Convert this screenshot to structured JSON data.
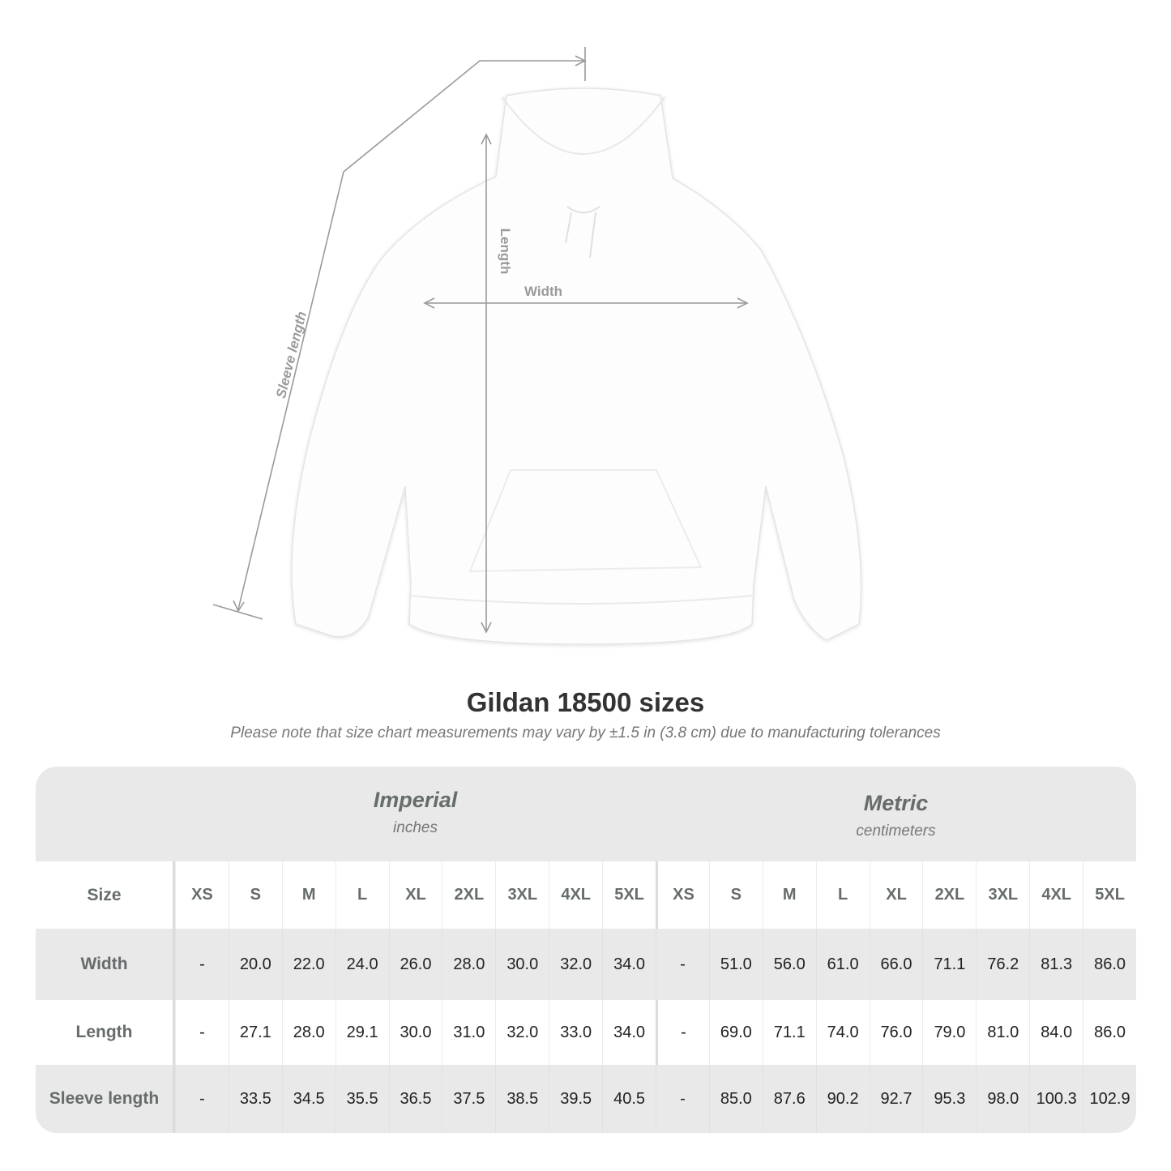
{
  "diagram": {
    "labels": {
      "length": "Length",
      "width": "Width",
      "sleeve_length": "Sleeve length"
    },
    "colors": {
      "measure_line": "#9a9a9a",
      "garment": "#ffffff"
    }
  },
  "title": "Gildan 18500 sizes",
  "subtitle": "Please note that size chart measurements may vary by ±1.5 in (3.8 cm) due to manufacturing tolerances",
  "table": {
    "imperial": {
      "name": "Imperial",
      "unit": "inches"
    },
    "metric": {
      "name": "Metric",
      "unit": "centimeters"
    },
    "size_label": "Size",
    "sizes": [
      "XS",
      "S",
      "M",
      "L",
      "XL",
      "2XL",
      "3XL",
      "4XL",
      "5XL"
    ],
    "rows": [
      {
        "label": "Width",
        "imperial": [
          "-",
          "20.0",
          "22.0",
          "24.0",
          "26.0",
          "28.0",
          "30.0",
          "32.0",
          "34.0"
        ],
        "metric": [
          "-",
          "51.0",
          "56.0",
          "61.0",
          "66.0",
          "71.1",
          "76.2",
          "81.3",
          "86.0"
        ]
      },
      {
        "label": "Length",
        "imperial": [
          "-",
          "27.1",
          "28.0",
          "29.1",
          "30.0",
          "31.0",
          "32.0",
          "33.0",
          "34.0"
        ],
        "metric": [
          "-",
          "69.0",
          "71.1",
          "74.0",
          "76.0",
          "79.0",
          "81.0",
          "84.0",
          "86.0"
        ]
      },
      {
        "label": "Sleeve length",
        "imperial": [
          "-",
          "33.5",
          "34.5",
          "35.5",
          "36.5",
          "37.5",
          "38.5",
          "39.5",
          "40.5"
        ],
        "metric": [
          "-",
          "85.0",
          "87.6",
          "90.2",
          "92.7",
          "95.3",
          "98.0",
          "100.3",
          "102.9"
        ]
      }
    ],
    "colors": {
      "header_bg": "#e9e9e9",
      "label_text": "#666b6b"
    }
  }
}
